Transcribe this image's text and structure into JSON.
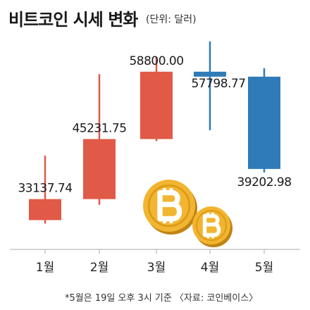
{
  "title": "비트코인 시세 변화",
  "unit": "(단위: 달러)",
  "footnote": "*5월은 19일 오후 3시 기준 〈자료: 코인베이스〉",
  "chart_data": {
    "type": "candlestick",
    "categories": [
      "1월",
      "2월",
      "3월",
      "4월",
      "5월"
    ],
    "series": [
      {
        "category": "1월",
        "open": 28900,
        "close": 33137.74,
        "high": 41900,
        "low": 28200,
        "color": "#e05a47"
      },
      {
        "category": "2월",
        "open": 33137.74,
        "close": 45231.75,
        "high": 58300,
        "low": 32000,
        "color": "#e05a47"
      },
      {
        "category": "3월",
        "open": 45231.75,
        "close": 58800.0,
        "high": 61800,
        "low": 44800,
        "color": "#e05a47"
      },
      {
        "category": "4월",
        "open": 58800.0,
        "close": 57798.77,
        "high": 64900,
        "low": 47000,
        "color": "#2f7bb8"
      },
      {
        "category": "5월",
        "open": 57798.77,
        "close": 39202.98,
        "high": 59500,
        "low": 38500,
        "color": "#2f7bb8"
      }
    ],
    "value_labels": [
      "33137.74",
      "45231.75",
      "58800.00",
      "57798.77",
      "39202.98"
    ],
    "label_positions": [
      "above",
      "above",
      "above",
      "right",
      "below"
    ],
    "axis": {
      "baseline_color": "#aaaaaa",
      "show_y_axis": false,
      "grid": false
    }
  },
  "decoration": {
    "coin_colors": {
      "face": "#f2b531",
      "rim": "#d99a16",
      "symbol": "#ffffff",
      "edge": "#c08414"
    }
  }
}
